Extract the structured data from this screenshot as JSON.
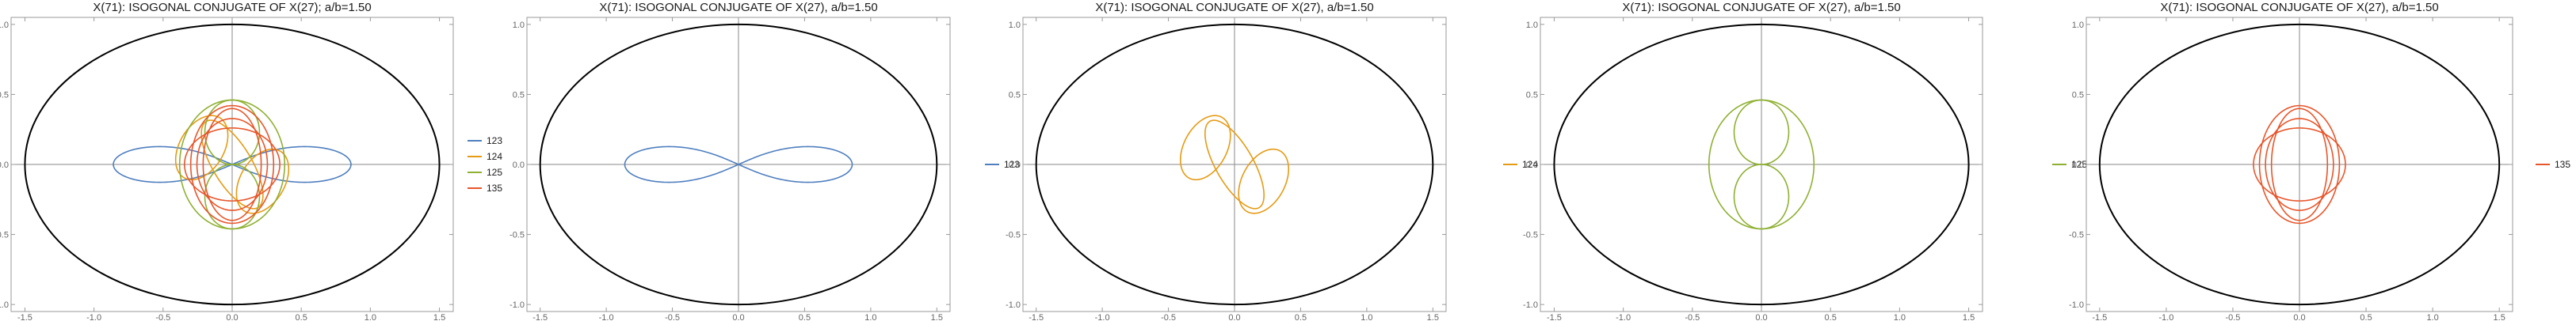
{
  "chart_data": [
    {
      "type": "line",
      "title": "X(71): ISOGONAL CONJUGATE OF X(27); a/b=1.50",
      "xlim": [
        -1.6,
        1.6
      ],
      "ylim": [
        -1.05,
        1.05
      ],
      "xticks": [
        -1.5,
        -1.0,
        -0.5,
        0.0,
        0.5,
        1.0,
        1.5
      ],
      "yticks": [
        -1.0,
        -0.5,
        0.0,
        0.5,
        1.0
      ],
      "ellipse": {
        "a": 1.5,
        "b": 1.0,
        "color": "#000000"
      },
      "legend_position": "right",
      "series": [
        {
          "name": "123",
          "color": "#4f7fbf",
          "shape": "lemniscate",
          "rx": 0.86,
          "ry": 0.18
        },
        {
          "name": "124",
          "color": "#e59b14",
          "shape": "tilted-loops",
          "rx": 0.36,
          "ry": 0.26
        },
        {
          "name": "125",
          "color": "#8fb032",
          "shape": "double-loop",
          "rx": 0.38,
          "ry": 0.46
        },
        {
          "name": "135",
          "color": "#e8552a",
          "shape": "rings",
          "rx": 0.3,
          "ry": 0.42
        }
      ]
    },
    {
      "type": "line",
      "title": "X(71): ISOGONAL CONJUGATE OF X(27), a/b=1.50",
      "xlim": [
        -1.6,
        1.6
      ],
      "ylim": [
        -1.05,
        1.05
      ],
      "xticks": [
        -1.5,
        -1.0,
        -0.5,
        0.0,
        0.5,
        1.0,
        1.5
      ],
      "yticks": [
        -1.0,
        -0.5,
        0.0,
        0.5,
        1.0
      ],
      "ellipse": {
        "a": 1.5,
        "b": 1.0,
        "color": "#000000"
      },
      "legend_position": "right",
      "series": [
        {
          "name": "123",
          "color": "#4f7fbf",
          "shape": "lemniscate",
          "rx": 0.86,
          "ry": 0.18
        }
      ]
    },
    {
      "type": "line",
      "title": "X(71): ISOGONAL CONJUGATE OF X(27), a/b=1.50",
      "xlim": [
        -1.6,
        1.6
      ],
      "ylim": [
        -1.05,
        1.05
      ],
      "xticks": [
        -1.5,
        -1.0,
        -0.5,
        0.0,
        0.5,
        1.0,
        1.5
      ],
      "yticks": [
        -1.0,
        -0.5,
        0.0,
        0.5,
        1.0
      ],
      "ellipse": {
        "a": 1.5,
        "b": 1.0,
        "color": "#000000"
      },
      "legend_position": "right",
      "series": [
        {
          "name": "124",
          "color": "#e59b14",
          "shape": "tilted-loops",
          "rx": 0.36,
          "ry": 0.26
        }
      ]
    },
    {
      "type": "line",
      "title": "X(71): ISOGONAL CONJUGATE OF X(27), a/b=1.50",
      "xlim": [
        -1.6,
        1.6
      ],
      "ylim": [
        -1.05,
        1.05
      ],
      "xticks": [
        -1.5,
        -1.0,
        -0.5,
        0.0,
        0.5,
        1.0,
        1.5
      ],
      "yticks": [
        -1.0,
        -0.5,
        0.0,
        0.5,
        1.0
      ],
      "ellipse": {
        "a": 1.5,
        "b": 1.0,
        "color": "#000000"
      },
      "legend_position": "right",
      "series": [
        {
          "name": "125",
          "color": "#8fb032",
          "shape": "double-loop",
          "rx": 0.38,
          "ry": 0.46
        }
      ]
    },
    {
      "type": "line",
      "title": "X(71): ISOGONAL CONJUGATE OF X(27), a/b=1.50",
      "xlim": [
        -1.6,
        1.6
      ],
      "ylim": [
        -1.05,
        1.05
      ],
      "xticks": [
        -1.5,
        -1.0,
        -0.5,
        0.0,
        0.5,
        1.0,
        1.5
      ],
      "yticks": [
        -1.0,
        -0.5,
        0.0,
        0.5,
        1.0
      ],
      "ellipse": {
        "a": 1.5,
        "b": 1.0,
        "color": "#000000"
      },
      "legend_position": "right",
      "series": [
        {
          "name": "135",
          "color": "#e8552a",
          "shape": "rings",
          "rx": 0.3,
          "ry": 0.42
        }
      ]
    }
  ]
}
